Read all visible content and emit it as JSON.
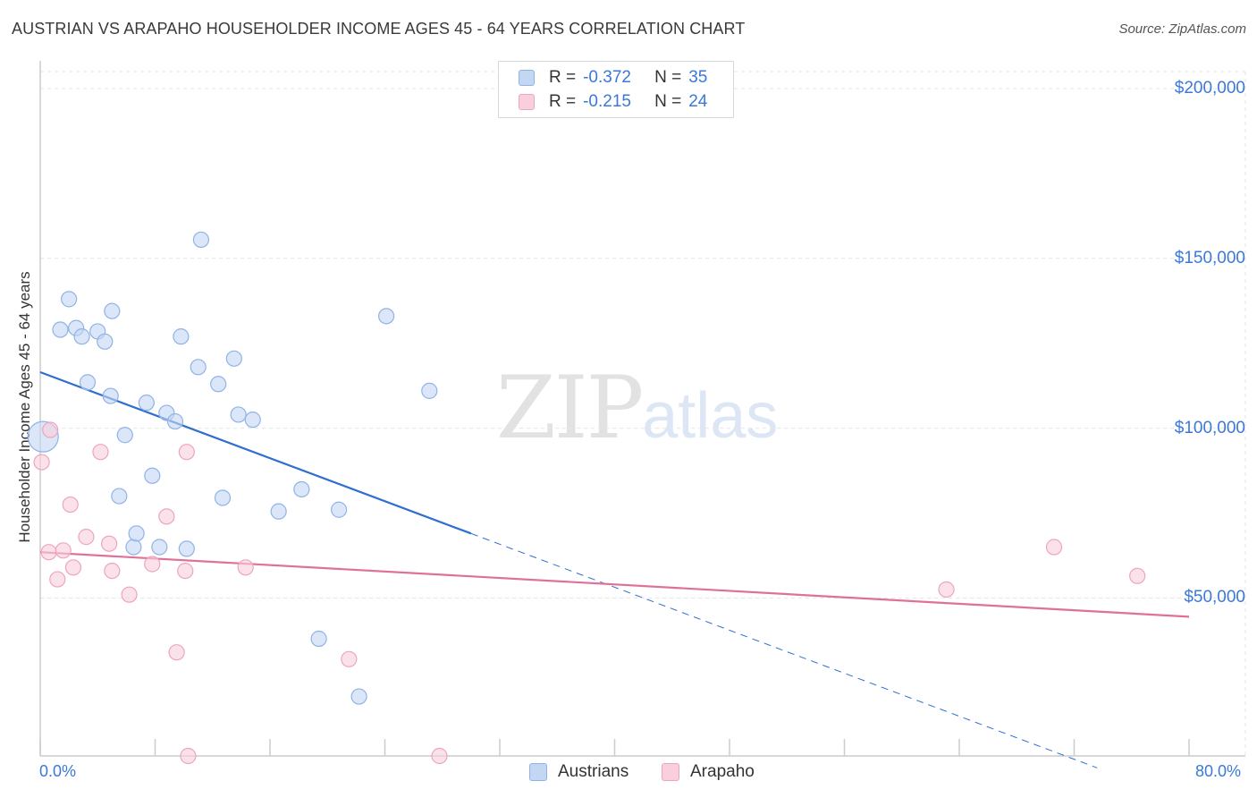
{
  "header": {
    "title": "AUSTRIAN VS ARAPAHO HOUSEHOLDER INCOME AGES 45 - 64 YEARS CORRELATION CHART",
    "source": "Source: ZipAtlas.com"
  },
  "watermark": {
    "zip": "ZIP",
    "atlas": "atlas"
  },
  "legend": {
    "r_label": "R =",
    "n_label": "N =",
    "austrians": {
      "r": "-0.372",
      "n": "35"
    },
    "arapaho": {
      "r": "-0.215",
      "n": "24"
    }
  },
  "colors": {
    "austrians_fill": "#c3d7f3",
    "austrians_stroke": "#8fb3e6",
    "austrians_line": "#2f6fd0",
    "arapaho_fill": "#f9cfdc",
    "arapaho_stroke": "#eca5bd",
    "arapaho_line": "#e0709a",
    "axis_text": "#3b78d8"
  },
  "chart_data": {
    "type": "scatter",
    "title": "AUSTRIAN VS ARAPAHO HOUSEHOLDER INCOME AGES 45 - 64 YEARS CORRELATION CHART",
    "xlabel": "",
    "ylabel": "Householder Income Ages 45 - 64 years",
    "x_tick_labels": [
      "0.0%",
      "80.0%"
    ],
    "y_tick_labels": [
      "$200,000",
      "$150,000",
      "$100,000",
      "$50,000"
    ],
    "y_ticks": [
      200000,
      150000,
      100000,
      50000
    ],
    "xlim": [
      0,
      80
    ],
    "ylim": [
      3500,
      205000
    ],
    "grid": true,
    "series": [
      {
        "name": "Austrians",
        "points": [
          [
            0.2,
            97500,
            "large"
          ],
          [
            1.4,
            129000
          ],
          [
            2.0,
            138000
          ],
          [
            2.5,
            129500
          ],
          [
            2.9,
            127000
          ],
          [
            3.3,
            113500
          ],
          [
            4.0,
            128500
          ],
          [
            4.5,
            125500
          ],
          [
            4.9,
            109500
          ],
          [
            5.0,
            134500
          ],
          [
            5.5,
            80000
          ],
          [
            5.9,
            98000
          ],
          [
            6.5,
            65000
          ],
          [
            6.7,
            69000
          ],
          [
            7.4,
            107500
          ],
          [
            7.8,
            86000
          ],
          [
            8.3,
            65000
          ],
          [
            8.8,
            104500
          ],
          [
            9.4,
            102000
          ],
          [
            9.8,
            127000
          ],
          [
            10.2,
            64500
          ],
          [
            11.0,
            118000
          ],
          [
            11.2,
            155500
          ],
          [
            12.4,
            113000
          ],
          [
            12.7,
            79500
          ],
          [
            13.5,
            120500
          ],
          [
            13.8,
            104000
          ],
          [
            14.8,
            102500
          ],
          [
            16.6,
            75500
          ],
          [
            18.2,
            82000
          ],
          [
            19.4,
            38000
          ],
          [
            20.8,
            76000
          ],
          [
            22.2,
            21000
          ],
          [
            24.1,
            133000
          ],
          [
            27.1,
            111000
          ]
        ]
      },
      {
        "name": "Arapaho",
        "points": [
          [
            0.1,
            90000
          ],
          [
            0.6,
            63500
          ],
          [
            0.7,
            99500
          ],
          [
            1.2,
            55500
          ],
          [
            1.6,
            64000
          ],
          [
            2.1,
            77500
          ],
          [
            2.3,
            59000
          ],
          [
            3.2,
            68000
          ],
          [
            4.2,
            93000
          ],
          [
            4.8,
            66000
          ],
          [
            5.0,
            58000
          ],
          [
            6.2,
            51000
          ],
          [
            7.8,
            60000
          ],
          [
            8.8,
            74000
          ],
          [
            9.5,
            34000
          ],
          [
            10.1,
            58000
          ],
          [
            10.2,
            93000
          ],
          [
            10.3,
            3500
          ],
          [
            14.3,
            59000
          ],
          [
            21.5,
            32000
          ],
          [
            27.8,
            3500
          ],
          [
            63.1,
            52500
          ],
          [
            70.6,
            65000
          ],
          [
            76.4,
            56500
          ]
        ]
      }
    ],
    "trend_lines": [
      {
        "name": "Austrians",
        "solid": [
          [
            0,
            116500
          ],
          [
            30,
            69000
          ]
        ],
        "dashed": [
          [
            30,
            69000
          ],
          [
            73.6,
            0
          ]
        ]
      },
      {
        "name": "Arapaho",
        "solid": [
          [
            0,
            63500
          ],
          [
            80,
            44500
          ]
        ]
      }
    ]
  },
  "bottom_legend": {
    "austrians": "Austrians",
    "arapaho": "Arapaho"
  }
}
